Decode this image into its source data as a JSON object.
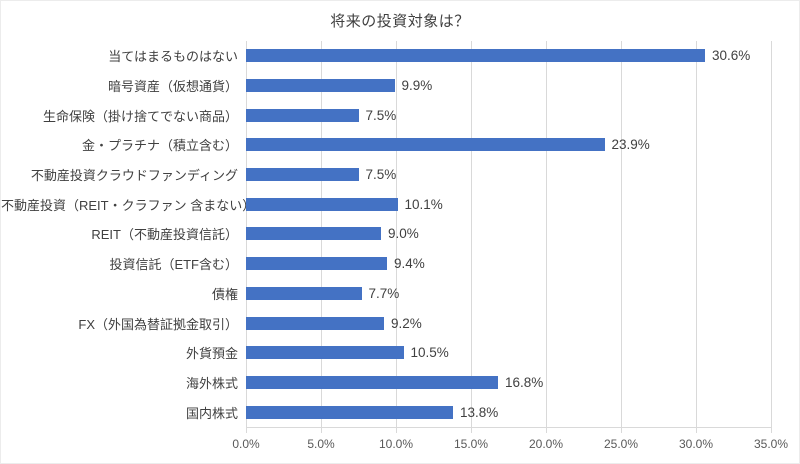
{
  "chart_data": {
    "type": "bar",
    "orientation": "horizontal",
    "title": "将来の投資対象は？",
    "categories": [
      "当てはまるものはない",
      "暗号資産（仮想通貨）",
      "生命保険（掛け捨てでない商品）",
      "金・プラチナ（積立含む）",
      "不動産投資クラウドファンディング",
      "不動産投資（REIT・クラファン 含まない）",
      "REIT（不動産投資信託）",
      "投資信託（ETF含む）",
      "債権",
      "FX（外国為替証拠金取引）",
      "外貨預金",
      "海外株式",
      "国内株式"
    ],
    "values": [
      30.6,
      9.9,
      7.5,
      23.9,
      7.5,
      10.1,
      9.0,
      9.4,
      7.7,
      9.2,
      10.5,
      16.8,
      13.8
    ],
    "value_labels": [
      "30.6%",
      "9.9%",
      "7.5%",
      "23.9%",
      "7.5%",
      "10.1%",
      "9.0%",
      "9.4%",
      "7.7%",
      "9.2%",
      "10.5%",
      "16.8%",
      "13.8%"
    ],
    "x_ticks": [
      "0.0%",
      "5.0%",
      "10.0%",
      "15.0%",
      "20.0%",
      "25.0%",
      "30.0%",
      "35.0%"
    ],
    "xlim": [
      0,
      35
    ],
    "xlabel": "",
    "ylabel": "",
    "grid": true,
    "legend": "none",
    "bar_color": "#4472C4",
    "gridline_color": "#D9D9D9",
    "text_color": "#404040",
    "axis_text_color": "#595959"
  }
}
